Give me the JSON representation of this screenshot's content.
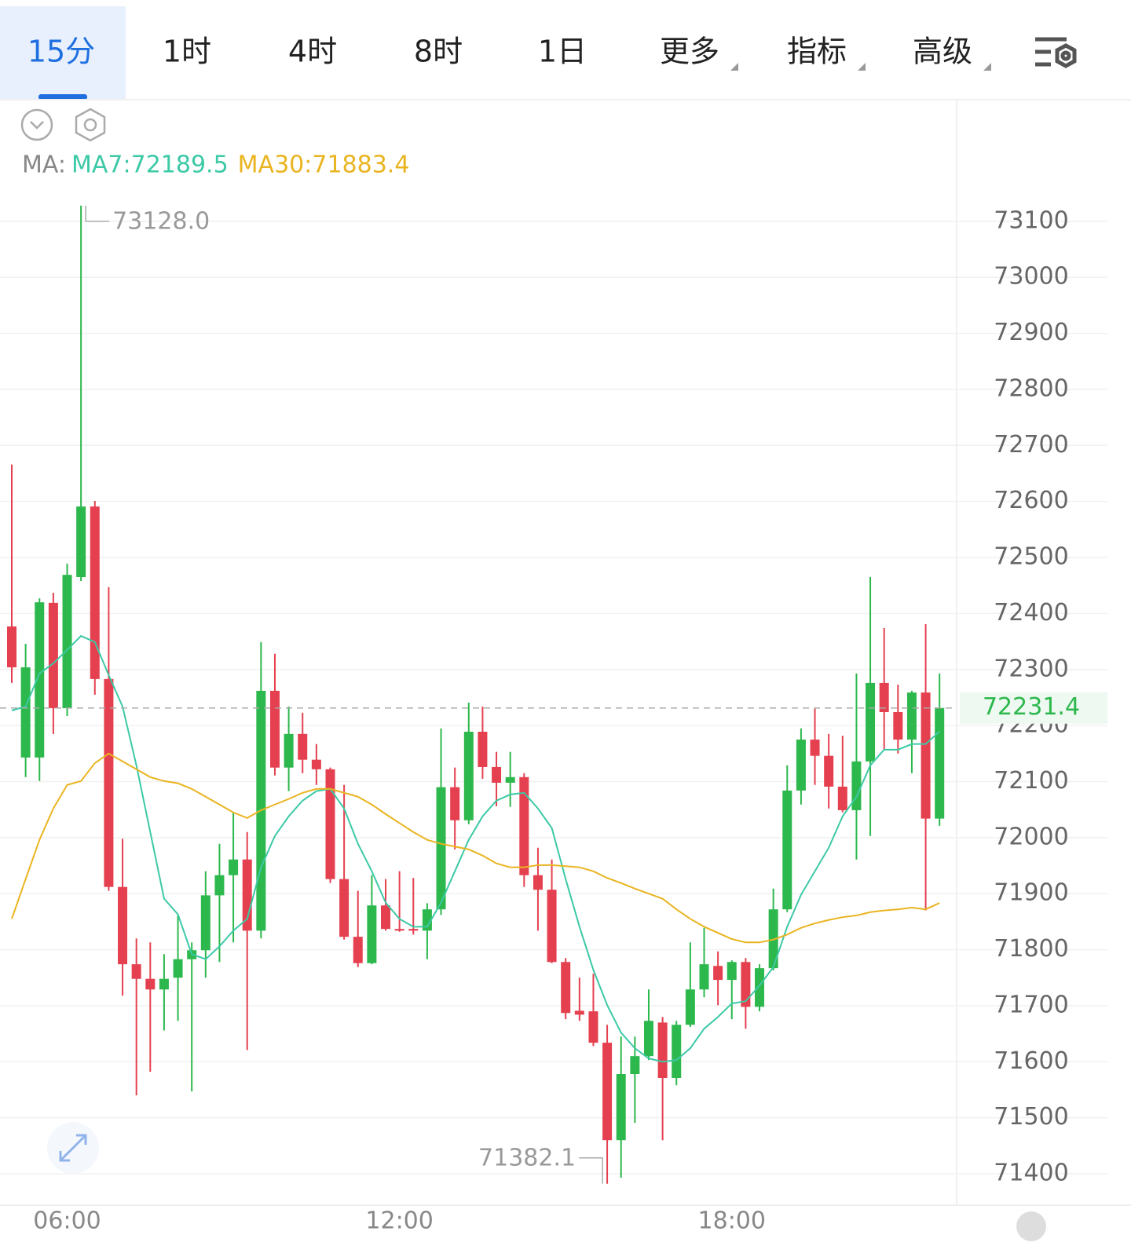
{
  "tabs": [
    "15分",
    "1时",
    "4时",
    "8时",
    "1日",
    "更多",
    "指标",
    "高级"
  ],
  "ma_legend": {
    "label": "MA:",
    "items": [
      "MA7:72189.5",
      "MA30:71883.4"
    ]
  },
  "chart_data": {
    "type": "candlestick",
    "categories": [
      null,
      null,
      null,
      null,
      "06:00",
      null,
      null,
      null,
      null,
      null,
      null,
      null,
      null,
      null,
      null,
      null,
      null,
      null,
      null,
      null,
      null,
      null,
      null,
      null,
      null,
      null,
      null,
      null,
      "12:00",
      null,
      null,
      null,
      null,
      null,
      null,
      null,
      null,
      null,
      null,
      null,
      null,
      null,
      null,
      null,
      null,
      null,
      null,
      null,
      null,
      null,
      null,
      null,
      "18:00",
      null,
      null,
      null,
      null,
      null,
      null,
      null,
      null,
      null,
      null,
      null,
      null,
      null,
      null,
      null
    ],
    "open": [
      72377,
      72143,
      72143,
      72419,
      72231,
      72465,
      72591,
      72283,
      71912,
      71774,
      71748,
      71729,
      71750,
      71783,
      71799,
      71897,
      71933,
      71961,
      71834,
      72262,
      72125,
      72185,
      72139,
      72122,
      71926,
      71823,
      71776,
      71879,
      71837,
      71837,
      71834,
      71872,
      72090,
      72031,
      72189,
      72126,
      72098,
      72108,
      71933,
      71907,
      71778,
      71691,
      71690,
      71634,
      71460,
      71578,
      71610,
      71670,
      71571,
      71666,
      71729,
      71771,
      71746,
      71778,
      71698,
      71767,
      71872,
      72084,
      72175,
      72146,
      72091,
      72049,
      72136,
      72276,
      72224,
      72175,
      72259,
      72034
    ],
    "high": [
      72666,
      72346,
      72427,
      72437,
      72489,
      73128,
      72601,
      72447,
      71998,
      71820,
      71813,
      71792,
      71862,
      71813,
      71940,
      71989,
      72045,
      72010,
      72349,
      72328,
      72234,
      72223,
      72167,
      72125,
      72094,
      71905,
      71933,
      71926,
      71940,
      71928,
      71883,
      72195,
      72125,
      72241,
      72234,
      72153,
      72153,
      72115,
      71982,
      71961,
      71785,
      71750,
      71757,
      71666,
      71645,
      71645,
      71729,
      71680,
      71673,
      71813,
      71839,
      71797,
      71781,
      71785,
      71774,
      71909,
      72129,
      72195,
      72230,
      72185,
      72182,
      72293,
      72465,
      72374,
      72273,
      72262,
      72381,
      72293
    ],
    "low": [
      72276,
      72108,
      72101,
      72185,
      72217,
      72458,
      72255,
      71905,
      71718,
      71540,
      71582,
      71656,
      71673,
      71547,
      71750,
      71778,
      71813,
      71621,
      71820,
      72111,
      72083,
      72115,
      72094,
      71919,
      71818,
      71769,
      71774,
      71834,
      71832,
      71827,
      71783,
      71862,
      71979,
      72024,
      72105,
      72056,
      72055,
      71912,
      71834,
      71776,
      71676,
      71673,
      71628,
      71382.1,
      71393,
      71491,
      71603,
      71460,
      71558,
      71662,
      71715,
      71701,
      71676,
      71659,
      71690,
      71763,
      71867,
      72059,
      72094,
      72052,
      72045,
      71961,
      72003,
      72157,
      72150,
      72115,
      71870,
      72021
    ],
    "close": [
      72304,
      72304,
      72420,
      72231,
      72469,
      72591,
      72283,
      71912,
      71774,
      71748,
      71729,
      71748,
      71783,
      71799,
      71897,
      71933,
      71961,
      71834,
      72262,
      72125,
      72185,
      72139,
      72122,
      71926,
      71823,
      71776,
      71879,
      71837,
      71834,
      71834,
      71872,
      72090,
      72031,
      72189,
      72126,
      72098,
      72108,
      71933,
      71907,
      71778,
      71687,
      71684,
      71634,
      71460,
      71578,
      71610,
      71673,
      71571,
      71666,
      71729,
      71774,
      71746,
      71778,
      71698,
      71767,
      71872,
      72084,
      72175,
      72146,
      72091,
      72049,
      72136,
      72276,
      72224,
      72175,
      72259,
      72034,
      72231.4
    ],
    "up_color": "#2db84d",
    "down_color": "#e5404f",
    "series": [
      {
        "name": "MA7",
        "color": "#3cc9a6",
        "values": [
          72227,
          72234,
          72293,
          72311,
          72335,
          72360,
          72349,
          72290,
          72234,
          72129,
          72010,
          71891,
          71863,
          71792,
          71783,
          71806,
          71834,
          71855,
          71947,
          72003,
          72038,
          72066,
          72083,
          72087,
          72052,
          71989,
          71940,
          71884,
          71855,
          71841,
          71841,
          71884,
          71940,
          71996,
          72038,
          72066,
          72077,
          72080,
          72052,
          72017,
          71926,
          71841,
          71764,
          71701,
          71652,
          71624,
          71606,
          71600,
          71603,
          71624,
          71659,
          71680,
          71704,
          71708,
          71736,
          71769,
          71841,
          71898,
          71940,
          71982,
          72038,
          72073,
          72129,
          72157,
          72157,
          72167,
          72167,
          72189.5
        ]
      },
      {
        "name": "MA30",
        "color": "#eab420",
        "values": [
          71855,
          71926,
          71996,
          72052,
          72094,
          72101,
          72133,
          72150,
          72136,
          72122,
          72108,
          72101,
          72097,
          72087,
          72073,
          72059,
          72045,
          72035,
          72049,
          72059,
          72069,
          72080,
          72087,
          72087,
          72080,
          72073,
          72059,
          72042,
          72026,
          72010,
          71996,
          71989,
          71984,
          71979,
          71968,
          71954,
          71947,
          71947,
          71951,
          71951,
          71949,
          71947,
          71940,
          71928,
          71919,
          71909,
          71900,
          71891,
          71872,
          71855,
          71841,
          71830,
          71819,
          71813,
          71813,
          71818,
          71827,
          71839,
          71847,
          71853,
          71858,
          71861,
          71867,
          71870,
          71872,
          71875,
          71872,
          71883.4
        ]
      }
    ],
    "ylim": [
      71344,
      73317
    ],
    "yticks": [
      71400,
      71500,
      71600,
      71700,
      71800,
      71900,
      72000,
      72100,
      72200,
      72300,
      72400,
      72500,
      72600,
      72700,
      72800,
      72900,
      73000,
      73100
    ],
    "grid": true,
    "annotations": {
      "high": {
        "index": 5,
        "value": 73128,
        "label": "73128.0"
      },
      "low": {
        "index": 43,
        "value": 71382.1
      },
      "last_price": 72231.4
    }
  }
}
